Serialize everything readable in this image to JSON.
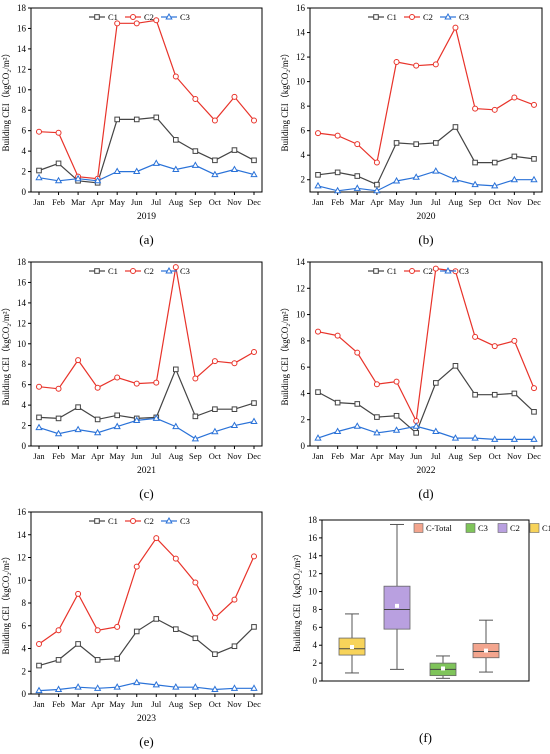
{
  "figure": {
    "panels": [
      {
        "label": "(a)",
        "year": "2019",
        "ylabel": "Building CEI（kgCO₂/m²）"
      },
      {
        "label": "(b)",
        "year": "2020",
        "ylabel": "Building CEI（kgCO₂/m²）"
      },
      {
        "label": "(c)",
        "year": "2021",
        "ylabel": "Building CEI（kgCO₂/m²）"
      },
      {
        "label": "(d)",
        "year": "2022",
        "ylabel": "Building CEI（kgCO₂/m²）"
      },
      {
        "label": "(e)",
        "year": "2023",
        "ylabel": "Building CEI（kgCO₂/m²）"
      },
      {
        "label": "(f)",
        "year": "",
        "ylabel": "Building CEI（kgCO₂/m²）"
      }
    ]
  },
  "chart_data": [
    {
      "type": "line",
      "title": "",
      "xlabel": "2019",
      "ylabel": "Building CEI（kgCO₂/m²）",
      "categories": [
        "Jan",
        "Feb",
        "Mar",
        "Apr",
        "May",
        "Jun",
        "Jul",
        "Aug",
        "Sep",
        "Oct",
        "Nov",
        "Dec"
      ],
      "ylim": [
        0,
        18
      ],
      "yticks": [
        0,
        2,
        4,
        6,
        8,
        10,
        12,
        14,
        16,
        18
      ],
      "legend_position": "top-left",
      "series": [
        {
          "name": "C1",
          "color": "#444444",
          "marker": "square",
          "values": [
            2.1,
            2.8,
            1.1,
            0.9,
            7.1,
            7.1,
            7.3,
            5.1,
            4.0,
            3.1,
            4.1,
            3.1
          ]
        },
        {
          "name": "C2",
          "color": "#e8332a",
          "marker": "circle",
          "values": [
            5.9,
            5.8,
            1.5,
            1.3,
            16.5,
            16.5,
            16.8,
            11.3,
            9.1,
            7.0,
            9.3,
            7.0
          ]
        },
        {
          "name": "C3",
          "color": "#2a72d8",
          "marker": "triangle",
          "values": [
            1.4,
            1.1,
            1.3,
            1.1,
            2.0,
            2.0,
            2.8,
            2.2,
            2.6,
            1.7,
            2.2,
            1.7
          ]
        }
      ]
    },
    {
      "type": "line",
      "title": "",
      "xlabel": "2020",
      "ylabel": "Building CEI（kgCO₂/m²）",
      "categories": [
        "Jan",
        "Feb",
        "Mar",
        "Apr",
        "May",
        "Jun",
        "Jul",
        "Aug",
        "Sep",
        "Oct",
        "Nov",
        "Dec"
      ],
      "ylim": [
        1,
        16
      ],
      "yticks": [
        2,
        4,
        6,
        8,
        10,
        12,
        14,
        16
      ],
      "legend_position": "top-left",
      "series": [
        {
          "name": "C1",
          "color": "#444444",
          "marker": "square",
          "values": [
            2.4,
            2.6,
            2.3,
            1.6,
            5.0,
            4.9,
            5.0,
            6.3,
            3.4,
            3.4,
            3.9,
            3.7
          ]
        },
        {
          "name": "C2",
          "color": "#e8332a",
          "marker": "circle",
          "values": [
            5.8,
            5.6,
            4.9,
            3.4,
            11.6,
            11.3,
            11.4,
            14.4,
            7.8,
            7.7,
            8.7,
            8.1
          ]
        },
        {
          "name": "C3",
          "color": "#2a72d8",
          "marker": "triangle",
          "values": [
            1.5,
            1.1,
            1.3,
            1.1,
            1.9,
            2.2,
            2.7,
            2.0,
            1.6,
            1.5,
            2.0,
            2.0
          ]
        }
      ]
    },
    {
      "type": "line",
      "title": "",
      "xlabel": "2021",
      "ylabel": "Building CEI（kgCO₂/m²）",
      "categories": [
        "Jan",
        "Feb",
        "Mar",
        "Apr",
        "May",
        "Jun",
        "Jul",
        "Aug",
        "Sep",
        "Oct",
        "Nov",
        "Dec"
      ],
      "ylim": [
        0,
        18
      ],
      "yticks": [
        0,
        2,
        4,
        6,
        8,
        10,
        12,
        14,
        16,
        18
      ],
      "legend_position": "top-left",
      "series": [
        {
          "name": "C1",
          "color": "#444444",
          "marker": "square",
          "values": [
            2.8,
            2.7,
            3.8,
            2.6,
            3.0,
            2.7,
            2.8,
            7.5,
            2.9,
            3.6,
            3.6,
            4.2
          ]
        },
        {
          "name": "C2",
          "color": "#e8332a",
          "marker": "circle",
          "values": [
            5.8,
            5.6,
            8.4,
            5.7,
            6.7,
            6.1,
            6.2,
            17.5,
            6.6,
            8.3,
            8.1,
            9.2
          ]
        },
        {
          "name": "C3",
          "color": "#2a72d8",
          "marker": "triangle",
          "values": [
            1.8,
            1.2,
            1.6,
            1.3,
            1.9,
            2.5,
            2.7,
            1.9,
            0.7,
            1.4,
            2.0,
            2.4
          ]
        }
      ]
    },
    {
      "type": "line",
      "title": "",
      "xlabel": "2022",
      "ylabel": "Building CEI（kgCO₂/m²）",
      "categories": [
        "Jan",
        "Feb",
        "Mar",
        "Apr",
        "May",
        "Jun",
        "Jul",
        "Aug",
        "Sep",
        "Oct",
        "Nov",
        "Dec"
      ],
      "ylim": [
        0,
        14
      ],
      "yticks": [
        0,
        2,
        4,
        6,
        8,
        10,
        12,
        14
      ],
      "legend_position": "top-left",
      "series": [
        {
          "name": "C1",
          "color": "#444444",
          "marker": "square",
          "values": [
            4.1,
            3.3,
            3.2,
            2.2,
            2.3,
            1.0,
            4.8,
            6.1,
            3.9,
            3.9,
            4.0,
            2.6
          ]
        },
        {
          "name": "C2",
          "color": "#e8332a",
          "marker": "circle",
          "values": [
            8.7,
            8.4,
            7.1,
            4.7,
            4.9,
            1.9,
            13.5,
            13.3,
            8.3,
            7.6,
            8.0,
            4.4
          ]
        },
        {
          "name": "C3",
          "color": "#2a72d8",
          "marker": "triangle",
          "values": [
            0.6,
            1.1,
            1.5,
            1.0,
            1.2,
            1.5,
            1.1,
            0.6,
            0.6,
            0.5,
            0.5,
            0.5
          ]
        }
      ]
    },
    {
      "type": "line",
      "title": "",
      "xlabel": "2023",
      "ylabel": "Building CEI（kgCO₂/m²）",
      "categories": [
        "Jan",
        "Feb",
        "Mar",
        "Apr",
        "May",
        "Jun",
        "Jul",
        "Aug",
        "Sep",
        "Oct",
        "Nov",
        "Dec"
      ],
      "ylim": [
        0,
        16
      ],
      "yticks": [
        0,
        2,
        4,
        6,
        8,
        10,
        12,
        14,
        16
      ],
      "legend_position": "top-left",
      "series": [
        {
          "name": "C1",
          "color": "#444444",
          "marker": "square",
          "values": [
            2.5,
            3.0,
            4.4,
            3.0,
            3.1,
            5.5,
            6.6,
            5.7,
            4.9,
            3.5,
            4.2,
            5.9
          ]
        },
        {
          "name": "C2",
          "color": "#e8332a",
          "marker": "circle",
          "values": [
            4.4,
            5.6,
            8.8,
            5.6,
            5.9,
            11.2,
            13.7,
            11.9,
            9.8,
            6.7,
            8.3,
            12.1
          ]
        },
        {
          "name": "C3",
          "color": "#2a72d8",
          "marker": "triangle",
          "values": [
            0.3,
            0.4,
            0.6,
            0.5,
            0.6,
            1.0,
            0.8,
            0.6,
            0.6,
            0.4,
            0.5,
            0.5
          ]
        }
      ]
    },
    {
      "type": "box",
      "title": "",
      "xlabel": "",
      "ylabel": "Building CEI（kgCO₂/m²）",
      "ylim": [
        0,
        18
      ],
      "yticks": [
        0,
        2,
        4,
        6,
        8,
        10,
        12,
        14,
        16,
        18
      ],
      "legend_position": "top-right",
      "legend_order": [
        "C-Total",
        "C3",
        "C2",
        "C1"
      ],
      "boxes": [
        {
          "name": "C1",
          "color": "#f7d35a",
          "min": 0.9,
          "q1": 2.9,
          "median": 3.6,
          "q3": 4.8,
          "max": 7.5,
          "mean": 3.8
        },
        {
          "name": "C2",
          "color": "#b9a0e0",
          "min": 1.3,
          "q1": 5.8,
          "median": 8.0,
          "q3": 10.6,
          "max": 17.5,
          "mean": 8.4
        },
        {
          "name": "C3",
          "color": "#7fc45a",
          "min": 0.3,
          "q1": 0.6,
          "median": 1.3,
          "q3": 2.0,
          "max": 2.8,
          "mean": 1.4
        },
        {
          "name": "C-Total",
          "color": "#f3a58e",
          "min": 1.0,
          "q1": 2.6,
          "median": 3.3,
          "q3": 4.2,
          "max": 6.8,
          "mean": 3.4
        }
      ]
    }
  ]
}
